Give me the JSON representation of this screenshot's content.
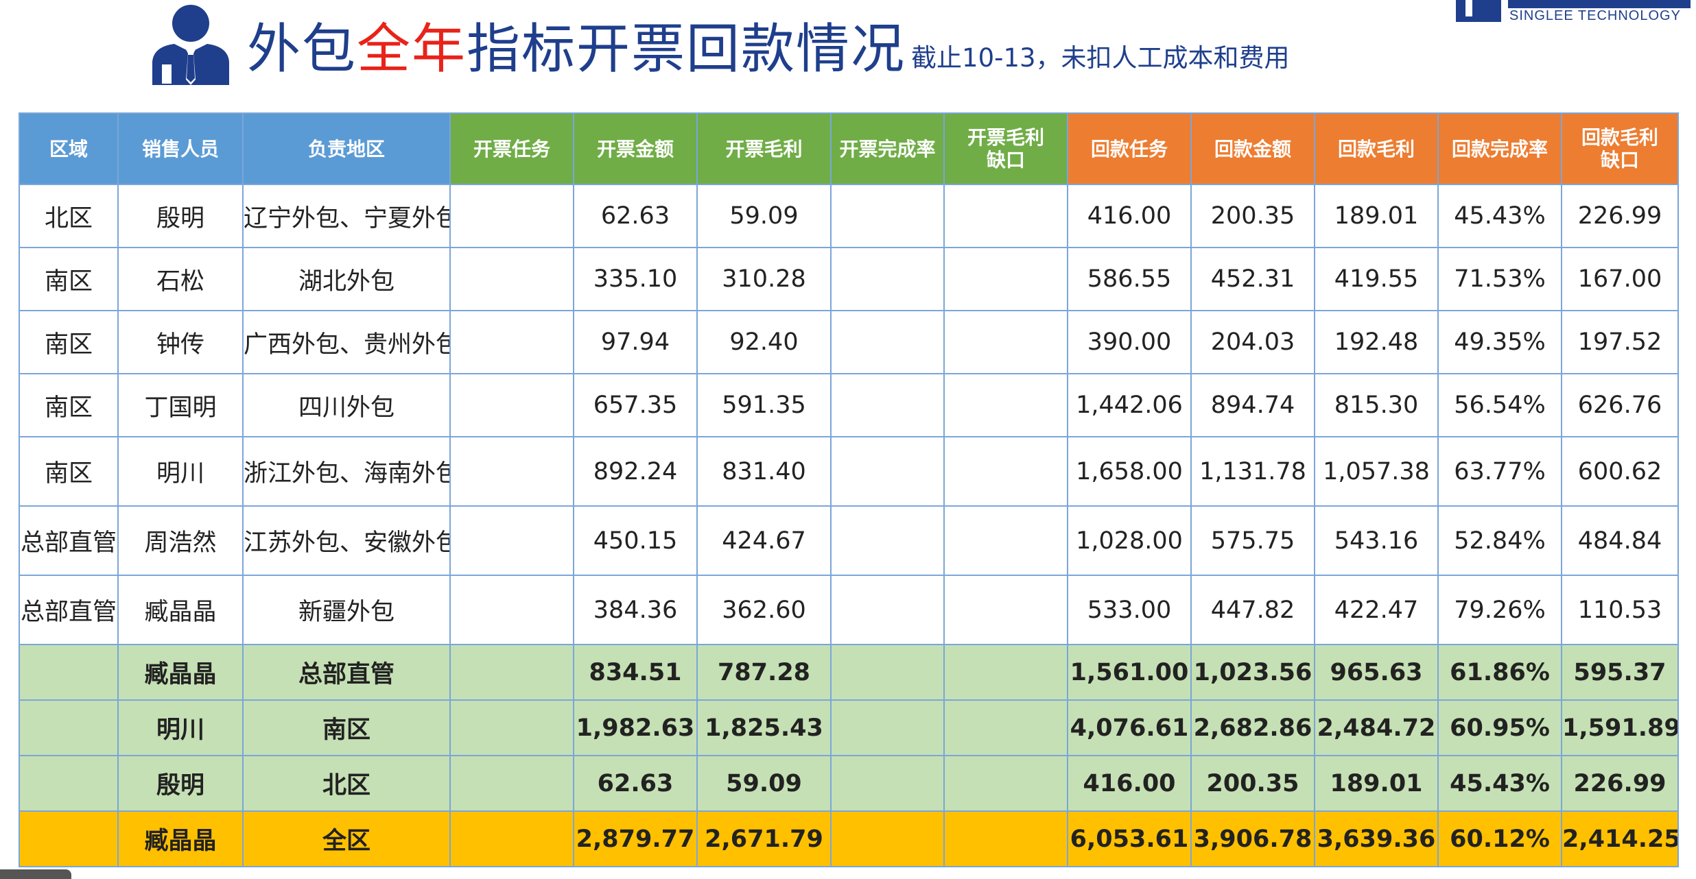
{
  "header": {
    "title_part1": "外包",
    "title_accent": "全年",
    "title_part2": "指标开票回款情况",
    "note": "截止10-13，未扣人工成本和费用"
  },
  "logo": {
    "tech_text": "SINGLEE TECHNOLOGY"
  },
  "colors": {
    "header_blue": "#5b9bd5",
    "header_green": "#70ad47",
    "header_orange": "#ed7d31",
    "subtotal_green": "#c5e0b4",
    "total_yellow": "#ffc000",
    "title_blue": "#1f3f8c",
    "title_red": "#e8231a"
  },
  "table": {
    "columns": {
      "region": "区域",
      "sales": "销售人员",
      "area": "负责地区",
      "invoice_task": "开票任务",
      "invoice_amount": "开票金额",
      "invoice_margin": "开票毛利",
      "invoice_rate": "开票完成率",
      "invoice_gap_line1": "开票毛利",
      "invoice_gap_line2": "缺口",
      "payment_task": "回款任务",
      "payment_amount": "回款金额",
      "payment_margin": "回款毛利",
      "payment_rate": "回款完成率",
      "payment_gap_line1": "回款毛利",
      "payment_gap_line2": "缺口"
    },
    "rows": [
      {
        "region": "北区",
        "sales": "殷明",
        "area": "辽宁外包、宁夏外包",
        "invoice_task": "",
        "invoice_amount": "62.63",
        "invoice_margin": "59.09",
        "invoice_rate": "",
        "invoice_gap": "",
        "payment_task": "416.00",
        "payment_amount": "200.35",
        "payment_margin": "189.01",
        "payment_rate": "45.43%",
        "payment_gap": "226.99"
      },
      {
        "region": "南区",
        "sales": "石松",
        "area": "湖北外包",
        "invoice_task": "",
        "invoice_amount": "335.10",
        "invoice_margin": "310.28",
        "invoice_rate": "",
        "invoice_gap": "",
        "payment_task": "586.55",
        "payment_amount": "452.31",
        "payment_margin": "419.55",
        "payment_rate": "71.53%",
        "payment_gap": "167.00"
      },
      {
        "region": "南区",
        "sales": "钟传",
        "area": "广西外包、贵州外包",
        "invoice_task": "",
        "invoice_amount": "97.94",
        "invoice_margin": "92.40",
        "invoice_rate": "",
        "invoice_gap": "",
        "payment_task": "390.00",
        "payment_amount": "204.03",
        "payment_margin": "192.48",
        "payment_rate": "49.35%",
        "payment_gap": "197.52"
      },
      {
        "region": "南区",
        "sales": "丁国明",
        "area": "四川外包",
        "invoice_task": "",
        "invoice_amount": "657.35",
        "invoice_margin": "591.35",
        "invoice_rate": "",
        "invoice_gap": "",
        "payment_task": "1,442.06",
        "payment_amount": "894.74",
        "payment_margin": "815.30",
        "payment_rate": "56.54%",
        "payment_gap": "626.76"
      },
      {
        "region": "南区",
        "sales": "明川",
        "area": "浙江外包、海南外包",
        "invoice_task": "",
        "invoice_amount": "892.24",
        "invoice_margin": "831.40",
        "invoice_rate": "",
        "invoice_gap": "",
        "payment_task": "1,658.00",
        "payment_amount": "1,131.78",
        "payment_margin": "1,057.38",
        "payment_rate": "63.77%",
        "payment_gap": "600.62"
      },
      {
        "region": "总部直管",
        "sales": "周浩然",
        "area": "江苏外包、安徽外包",
        "invoice_task": "",
        "invoice_amount": "450.15",
        "invoice_margin": "424.67",
        "invoice_rate": "",
        "invoice_gap": "",
        "payment_task": "1,028.00",
        "payment_amount": "575.75",
        "payment_margin": "543.16",
        "payment_rate": "52.84%",
        "payment_gap": "484.84"
      },
      {
        "region": "总部直管",
        "sales": "臧晶晶",
        "area": "新疆外包",
        "invoice_task": "",
        "invoice_amount": "384.36",
        "invoice_margin": "362.60",
        "invoice_rate": "",
        "invoice_gap": "",
        "payment_task": "533.00",
        "payment_amount": "447.82",
        "payment_margin": "422.47",
        "payment_rate": "79.26%",
        "payment_gap": "110.53"
      }
    ],
    "subtotals": [
      {
        "region": "",
        "sales": "臧晶晶",
        "area": "总部直管",
        "invoice_task": "",
        "invoice_amount": "834.51",
        "invoice_margin": "787.28",
        "invoice_rate": "",
        "invoice_gap": "",
        "payment_task": "1,561.00",
        "payment_amount": "1,023.56",
        "payment_margin": "965.63",
        "payment_rate": "61.86%",
        "payment_gap": "595.37"
      },
      {
        "region": "",
        "sales": "明川",
        "area": "南区",
        "invoice_task": "",
        "invoice_amount": "1,982.63",
        "invoice_margin": "1,825.43",
        "invoice_rate": "",
        "invoice_gap": "",
        "payment_task": "4,076.61",
        "payment_amount": "2,682.86",
        "payment_margin": "2,484.72",
        "payment_rate": "60.95%",
        "payment_gap": "1,591.89"
      },
      {
        "region": "",
        "sales": "殷明",
        "area": "北区",
        "invoice_task": "",
        "invoice_amount": "62.63",
        "invoice_margin": "59.09",
        "invoice_rate": "",
        "invoice_gap": "",
        "payment_task": "416.00",
        "payment_amount": "200.35",
        "payment_margin": "189.01",
        "payment_rate": "45.43%",
        "payment_gap": "226.99"
      }
    ],
    "total": {
      "region": "",
      "sales": "臧晶晶",
      "area": "全区",
      "invoice_task": "",
      "invoice_amount": "2,879.77",
      "invoice_margin": "2,671.79",
      "invoice_rate": "",
      "invoice_gap": "",
      "payment_task": "6,053.61",
      "payment_amount": "3,906.78",
      "payment_margin": "3,639.36",
      "payment_rate": "60.12%",
      "payment_gap": "2,414.25"
    }
  }
}
